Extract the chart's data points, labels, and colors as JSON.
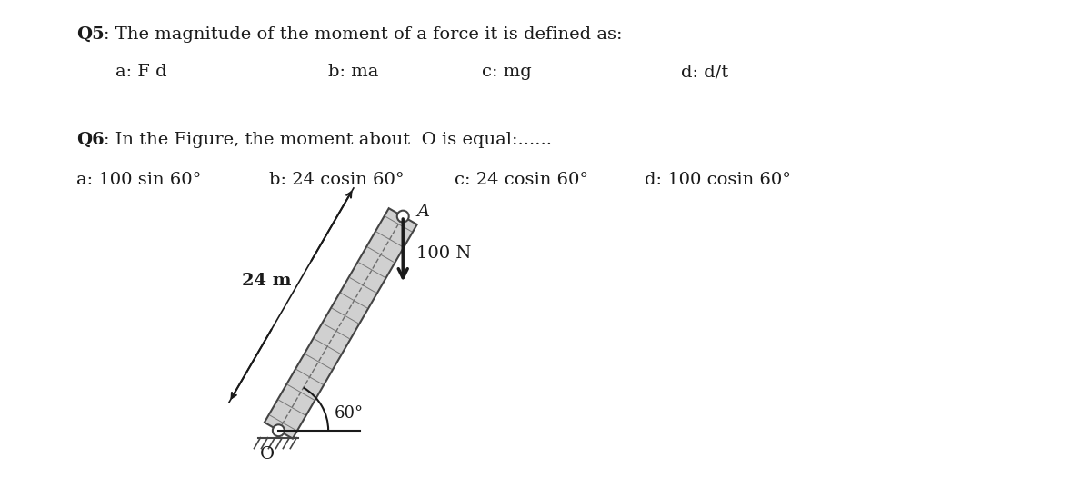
{
  "bg_color": "#ffffff",
  "fig_bg": "#ffffff",
  "q5_bold": "Q5",
  "q5_text": ": The magnitude of the moment of a force it is defined as:",
  "q5_options": [
    "a: F d",
    "b: ma",
    "c: mg",
    "d: d/t"
  ],
  "q6_bold": "Q6",
  "q6_text": ": In the Figure, the moment about  O is equal:......",
  "q6_options": [
    "a: 100 sin 60°",
    "b: 24 cosin 60°",
    "c: 24 cosin 60°",
    "d: 100 cosin 60°"
  ],
  "beam_label": "24 m",
  "force_label": "100 N",
  "angle_label": "60°",
  "point_O": "O",
  "point_A": "A",
  "arrow_color": "#1a1a1a",
  "text_color": "#1a1a1a",
  "beam_fill": "#d0d0d0",
  "beam_edge": "#444444",
  "font_size": 14
}
